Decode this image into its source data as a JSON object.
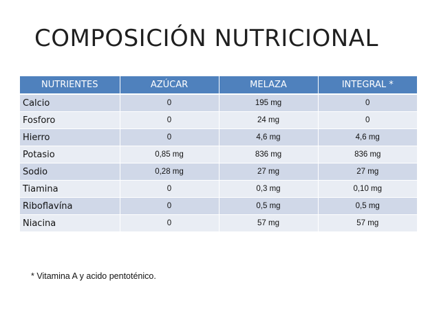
{
  "title": "COMPOSICIÓN NUTRICIONAL",
  "table": {
    "headers": [
      "NUTRIENTES",
      "AZÚCAR",
      "MELAZA",
      "INTEGRAL *"
    ],
    "rows": [
      [
        "Calcio",
        "0",
        "195 mg",
        "0"
      ],
      [
        "Fosforo",
        "0",
        "24 mg",
        "0"
      ],
      [
        "Hierro",
        "0",
        "4,6 mg",
        "4,6 mg"
      ],
      [
        "Potasio",
        "0,85 mg",
        "836 mg",
        "836 mg"
      ],
      [
        "Sodio",
        "0,28 mg",
        "27 mg",
        "27 mg"
      ],
      [
        "Tiamina",
        "0",
        "0,3 mg",
        "0,10 mg"
      ],
      [
        "Riboflavína",
        "0",
        "0,5 mg",
        "0,5 mg"
      ],
      [
        "Niacina",
        "0",
        "57 mg",
        "57 mg"
      ]
    ]
  },
  "footnote": "* Vitamina A y acido pentoténico.",
  "colors": {
    "header_bg": "#4f81bd",
    "row_band_1": "#d0d8e8",
    "row_band_2": "#e9edf4"
  }
}
